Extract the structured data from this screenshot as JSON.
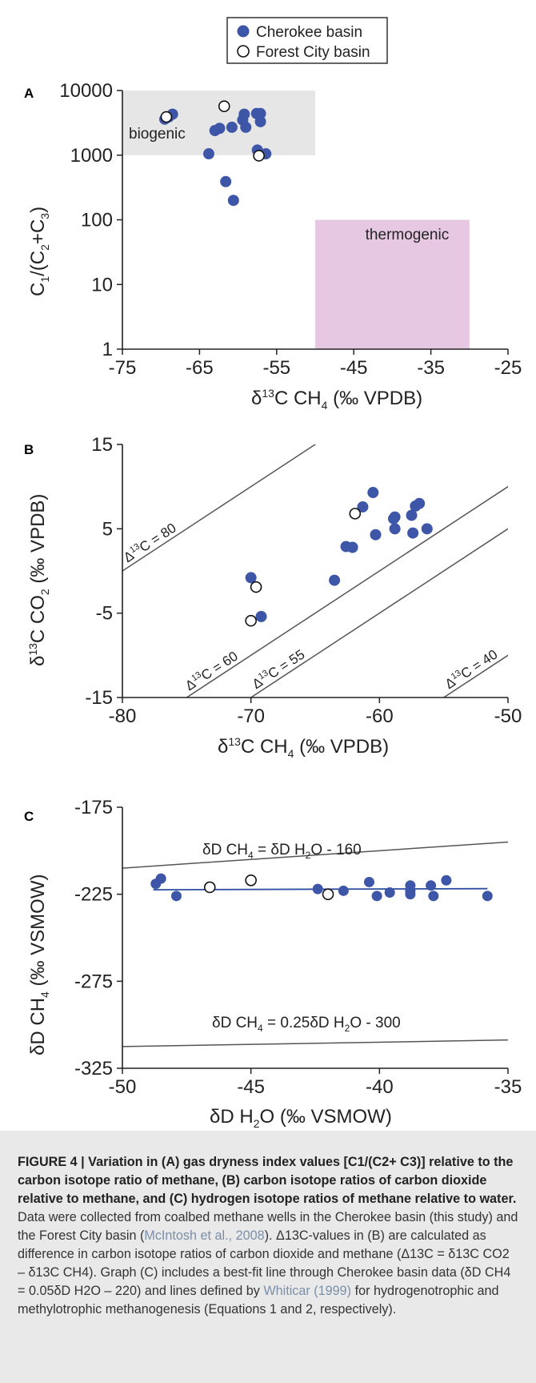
{
  "legend": {
    "items": [
      {
        "label": "Cherokee basin",
        "marker": "filled"
      },
      {
        "label": "Forest City basin",
        "marker": "open"
      }
    ]
  },
  "colors": {
    "cherokee": "#3d56a8",
    "forest_outline": "#111111",
    "biogenic_box": "#e6e6e6",
    "thermogenic_box": "#e7c8e3",
    "fit_line": "#2d4da0",
    "ref_line": "#555555",
    "caption_bg": "#e9e9e9"
  },
  "chart_data": [
    {
      "panel": "A",
      "type": "scatter",
      "xlabel": "δ13C CH4 (‰ VPDB)",
      "ylabel": "C1/(C2+C3)",
      "xlim": [
        -75,
        -25
      ],
      "ylim": [
        1,
        10000
      ],
      "yscale": "log",
      "xticks": [
        "-75",
        "-65",
        "-55",
        "-45",
        "-35",
        "-25"
      ],
      "yticks": [
        "1",
        "10",
        "100",
        "1000",
        "10000"
      ],
      "regions": [
        {
          "label": "biogenic",
          "x": [
            -75,
            -50
          ],
          "y": [
            1000,
            10000
          ]
        },
        {
          "label": "thermogenic",
          "x": [
            -50,
            -30
          ],
          "y": [
            1,
            100
          ]
        }
      ],
      "series": [
        {
          "name": "Cherokee basin",
          "points": [
            [
              -69.5,
              3600
            ],
            [
              -69.0,
              3900
            ],
            [
              -68.5,
              4300
            ],
            [
              -63.8,
              1050
            ],
            [
              -63.0,
              2400
            ],
            [
              -62.4,
              2600
            ],
            [
              -61.6,
              390
            ],
            [
              -60.8,
              2700
            ],
            [
              -60.6,
              200
            ],
            [
              -59.4,
              3500
            ],
            [
              -59.2,
              4300
            ],
            [
              -59.0,
              2700
            ],
            [
              -57.6,
              4400
            ],
            [
              -57.1,
              3300
            ],
            [
              -57.1,
              4400
            ],
            [
              -57.5,
              1200
            ],
            [
              -56.4,
              1050
            ]
          ]
        },
        {
          "name": "Forest City basin",
          "points": [
            [
              -69.3,
              3900
            ],
            [
              -61.8,
              5700
            ],
            [
              -57.3,
              980
            ]
          ]
        }
      ]
    },
    {
      "panel": "B",
      "type": "scatter",
      "xlabel": "δ13C CH4 (‰ VPDB)",
      "ylabel": "δ13C CO2 (‰ VPDB)",
      "xlim": [
        -80,
        -50
      ],
      "ylim": [
        -15,
        15
      ],
      "xticks": [
        "-80",
        "-70",
        "-60",
        "-50"
      ],
      "yticks": [
        "-15",
        "-5",
        "5",
        "15"
      ],
      "reference_lines": [
        {
          "label": "Δ13C = 80",
          "delta": 80
        },
        {
          "label": "Δ13C = 60",
          "delta": 60
        },
        {
          "label": "Δ13C = 55",
          "delta": 55
        },
        {
          "label": "Δ13C = 40",
          "delta": 40
        }
      ],
      "series": [
        {
          "name": "Cherokee basin",
          "points": [
            [
              -70.0,
              -0.8
            ],
            [
              -69.2,
              -5.4
            ],
            [
              -63.5,
              -1.1
            ],
            [
              -62.6,
              2.9
            ],
            [
              -62.1,
              2.8
            ],
            [
              -61.3,
              7.6
            ],
            [
              -60.5,
              9.3
            ],
            [
              -60.3,
              4.3
            ],
            [
              -58.9,
              6.2
            ],
            [
              -58.8,
              6.4
            ],
            [
              -58.8,
              5.0
            ],
            [
              -57.5,
              6.6
            ],
            [
              -57.4,
              4.5
            ],
            [
              -57.2,
              7.7
            ],
            [
              -56.9,
              8.0
            ],
            [
              -56.3,
              5.0
            ]
          ]
        },
        {
          "name": "Forest City basin",
          "points": [
            [
              -61.9,
              6.8
            ],
            [
              -69.6,
              -1.9
            ],
            [
              -70.0,
              -5.9
            ]
          ]
        }
      ]
    },
    {
      "panel": "C",
      "type": "scatter",
      "xlabel": "δD H2O (‰ VSMOW)",
      "ylabel": "δD CH4 (‰ VSMOW)",
      "xlim": [
        -50,
        -35
      ],
      "ylim": [
        -325,
        -175
      ],
      "xticks": [
        "-50",
        "-45",
        "-40",
        "-35"
      ],
      "yticks": [
        "-175",
        "-225",
        "-275",
        "-325"
      ],
      "reference_lines": [
        {
          "label": "δD CH4 = δD H2O - 160",
          "slope": 1,
          "intercept": -160
        },
        {
          "label": "δD CH4 = 0.25δD H2O - 300",
          "slope": 0.25,
          "intercept": -300
        }
      ],
      "fit_line": {
        "slope": 0.05,
        "intercept": -220
      },
      "series": [
        {
          "name": "Cherokee basin",
          "points": [
            [
              -48.7,
              -219
            ],
            [
              -48.5,
              -216
            ],
            [
              -47.9,
              -226
            ],
            [
              -42.4,
              -222
            ],
            [
              -41.4,
              -223
            ],
            [
              -40.4,
              -218
            ],
            [
              -40.1,
              -226
            ],
            [
              -39.6,
              -224
            ],
            [
              -38.8,
              -220
            ],
            [
              -38.8,
              -223
            ],
            [
              -38.8,
              -225
            ],
            [
              -38.0,
              -220
            ],
            [
              -37.9,
              -226
            ],
            [
              -37.4,
              -217
            ],
            [
              -35.8,
              -226
            ]
          ]
        },
        {
          "name": "Forest City basin",
          "points": [
            [
              -46.6,
              -221
            ],
            [
              -45.0,
              -217
            ],
            [
              -42.0,
              -225
            ]
          ]
        }
      ]
    }
  ],
  "caption": {
    "title": "FIGURE 4 | Variation in (A) gas dryness index values [C1/(C2+ C3)] relative to the carbon isotope ratio of methane, (B) carbon isotope ratios of carbon dioxide relative to methane, and (C) hydrogen isotope ratios of methane relative to water.",
    "body_part1": "Data were collected from coalbed methane wells in the Cherokee basin (this study) and the Forest City basin (",
    "cite1": "McIntosh et al., 2008",
    "body_part2": "). Δ13C-values in (B) are calculated as difference in carbon isotope ratios of carbon dioxide and methane (Δ13C = δ13C CO2 – δ13C CH4). Graph (C) includes a best-fit line through Cherokee basin data (δD CH4 = 0.05δD H2O – 220) and lines defined by ",
    "cite2": "Whiticar (1999)",
    "body_part3": " for hydrogenotrophic and methylotrophic methanogenesis (Equations 1 and 2, respectively)."
  }
}
